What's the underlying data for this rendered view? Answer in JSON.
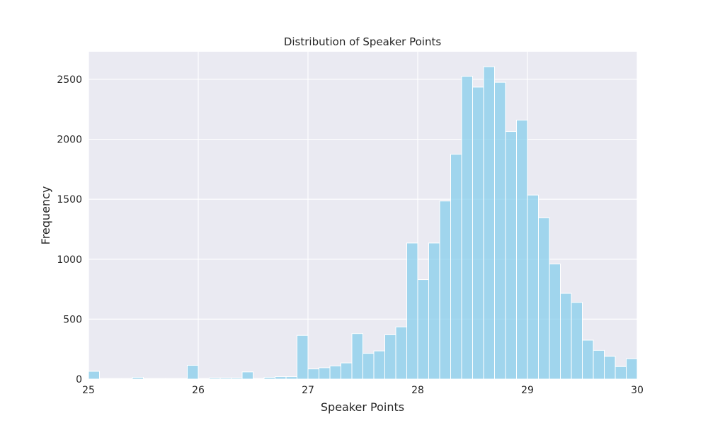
{
  "chart_data": {
    "type": "bar",
    "title": "Distribution of Speaker Points",
    "xlabel": "Speaker Points",
    "ylabel": "Frequency",
    "xlim": [
      25,
      30
    ],
    "ylim": [
      0,
      2730
    ],
    "xticks": [
      "25",
      "26",
      "27",
      "28",
      "29",
      "30"
    ],
    "yticks": [
      "0",
      "500",
      "1000",
      "1500",
      "2000",
      "2500"
    ],
    "grid": true,
    "bin_width": 0.1,
    "bins_start": [
      25.0,
      25.1,
      25.2,
      25.3,
      25.4,
      25.5,
      25.6,
      25.7,
      25.8,
      25.9,
      26.0,
      26.1,
      26.2,
      26.3,
      26.4,
      26.5,
      26.6,
      26.7,
      26.8,
      26.9,
      27.0,
      27.1,
      27.2,
      27.3,
      27.4,
      27.5,
      27.6,
      27.7,
      27.8,
      27.9,
      28.0,
      28.1,
      28.2,
      28.3,
      28.4,
      28.5,
      28.6,
      28.7,
      28.8,
      28.9,
      29.0,
      29.1,
      29.2,
      29.3,
      29.4,
      29.5,
      29.6,
      29.7,
      29.8,
      29.9
    ],
    "values": [
      65,
      5,
      5,
      5,
      15,
      5,
      5,
      5,
      5,
      115,
      5,
      10,
      10,
      10,
      60,
      5,
      15,
      20,
      20,
      365,
      85,
      95,
      110,
      135,
      380,
      215,
      235,
      370,
      435,
      1135,
      830,
      1135,
      1485,
      1875,
      2525,
      2435,
      2605,
      2475,
      2065,
      2160,
      1535,
      1345,
      960,
      715,
      640,
      325,
      240,
      190,
      105,
      170
    ],
    "colors": {
      "bar": "#87ceeb",
      "bar_edge": "#ffffff",
      "plot_bg": "#eaeaf2",
      "grid": "#ffffff"
    }
  }
}
